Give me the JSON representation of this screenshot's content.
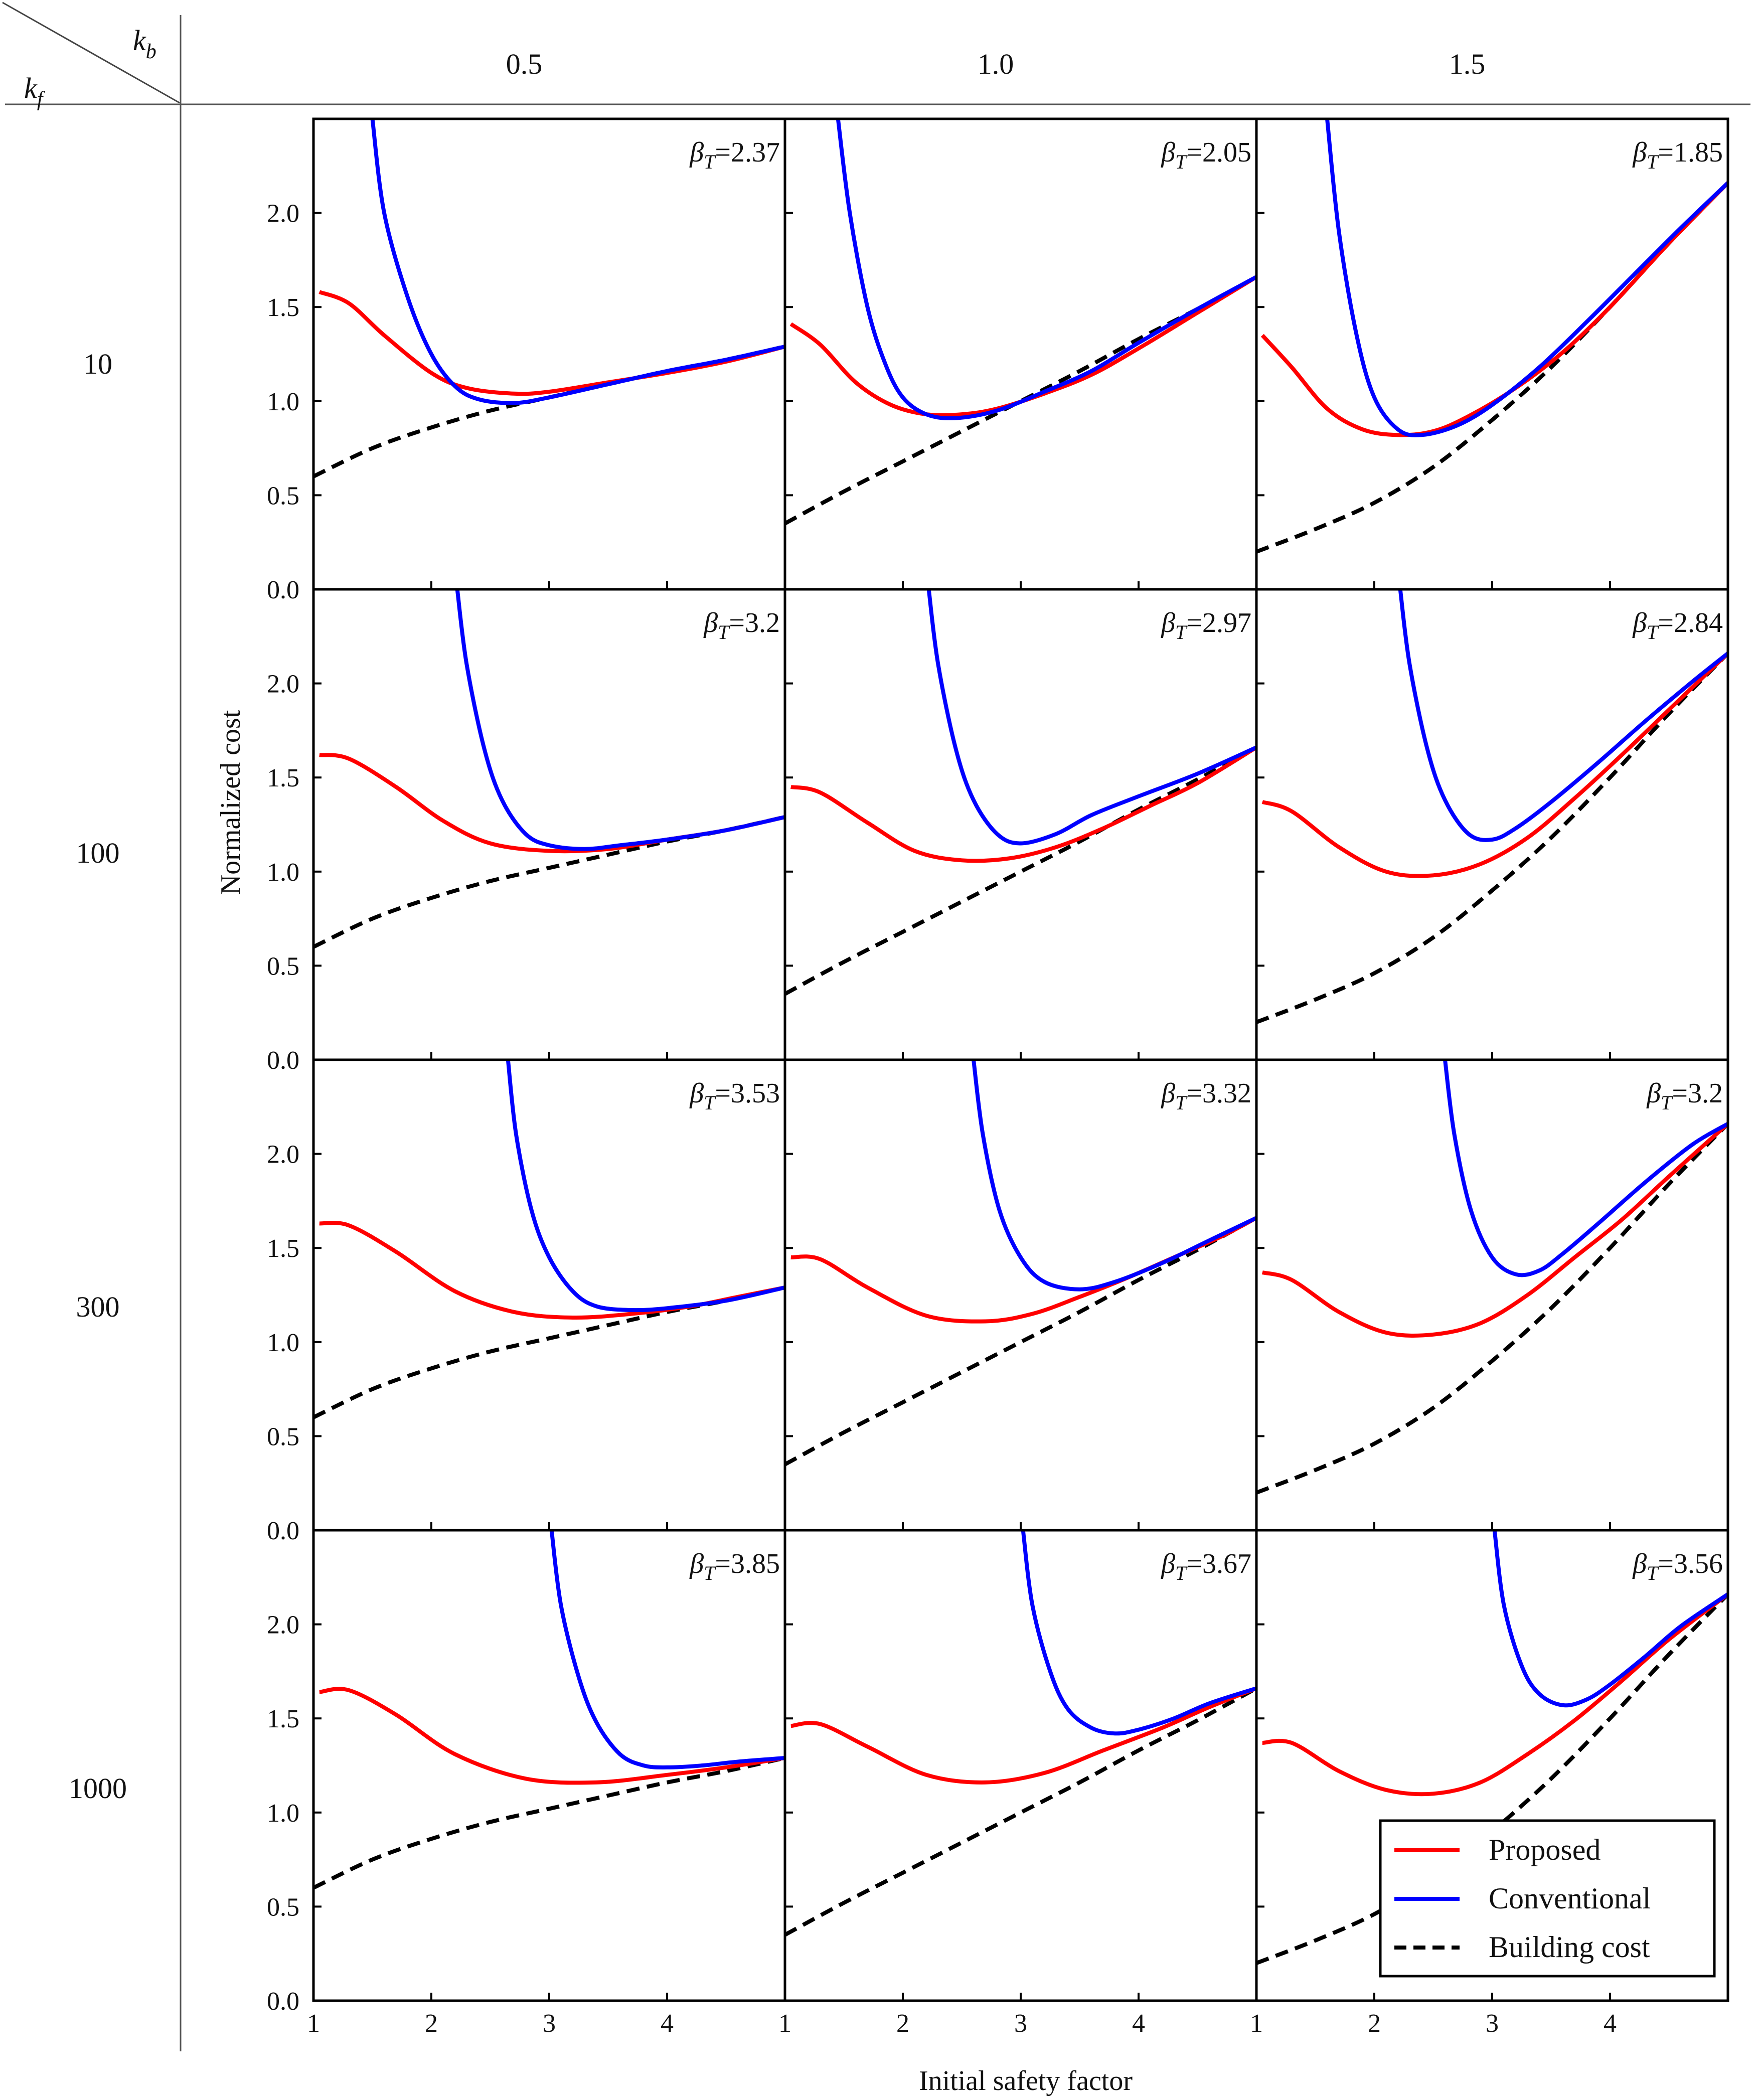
{
  "chart_data": {
    "type": "line",
    "corner": {
      "row_symbol": "k",
      "row_subscript": "f",
      "col_symbol": "k",
      "col_subscript": "b"
    },
    "columns": [
      "0.5",
      "1.0",
      "1.5"
    ],
    "rows": [
      "10",
      "100",
      "300",
      "1000"
    ],
    "ylabel": "Normalized cost",
    "xlabel": "Initial safety factor",
    "ylim": [
      0.0,
      2.5
    ],
    "yticks": [
      "0.0",
      "0.5",
      "1.0",
      "1.5",
      "2.0"
    ],
    "xlim": [
      1,
      5
    ],
    "xticks": [
      "1",
      "2",
      "3",
      "4"
    ],
    "legend": {
      "placement": "bottom-right",
      "entries": [
        {
          "label": "Proposed",
          "color": "#ff0000",
          "style": "solid"
        },
        {
          "label": "Conventional",
          "color": "#0000ff",
          "style": "solid"
        },
        {
          "label": "Building cost",
          "color": "#000000",
          "style": "dashed"
        }
      ]
    },
    "beta_prefix": "β",
    "beta_sub": "T",
    "building_cost": [
      {
        "x": [
          1,
          1.5,
          2,
          2.5,
          3,
          3.5,
          4,
          4.5,
          5
        ],
        "values": [
          0.6,
          0.75,
          0.86,
          0.95,
          1.02,
          1.09,
          1.16,
          1.22,
          1.29
        ]
      },
      {
        "x": [
          1,
          1.5,
          2,
          2.5,
          3,
          3.5,
          4,
          4.5,
          5
        ],
        "values": [
          0.35,
          0.52,
          0.68,
          0.84,
          1.0,
          1.16,
          1.33,
          1.49,
          1.66
        ]
      },
      {
        "x": [
          1,
          1.5,
          2,
          2.5,
          3,
          3.5,
          4,
          4.5,
          5
        ],
        "values": [
          0.2,
          0.32,
          0.46,
          0.65,
          0.9,
          1.18,
          1.5,
          1.84,
          2.16
        ]
      }
    ],
    "panels": [
      {
        "row": "10",
        "col": "0.5",
        "beta": "2.37",
        "series": [
          {
            "name": "Proposed",
            "x": [
              1.05,
              1.3,
              1.6,
              2.0,
              2.3,
              2.7,
              3.0,
              3.5,
              4.0,
              4.5,
              5.0
            ],
            "values": [
              1.58,
              1.52,
              1.35,
              1.15,
              1.07,
              1.04,
              1.05,
              1.1,
              1.15,
              1.21,
              1.29
            ]
          },
          {
            "name": "Conventional",
            "x": [
              1.5,
              1.6,
              1.8,
              2.0,
              2.2,
              2.4,
              2.7,
              3.0,
              3.5,
              4.0,
              4.5,
              5.0
            ],
            "values": [
              2.5,
              2.0,
              1.55,
              1.25,
              1.08,
              1.01,
              0.99,
              1.02,
              1.09,
              1.16,
              1.22,
              1.29
            ]
          }
        ]
      },
      {
        "row": "10",
        "col": "1.0",
        "beta": "2.05",
        "series": [
          {
            "name": "Proposed",
            "x": [
              1.05,
              1.3,
              1.6,
              1.9,
              2.2,
              2.5,
              2.8,
              3.2,
              3.6,
              4.0,
              4.5,
              5.0
            ],
            "values": [
              1.41,
              1.3,
              1.1,
              0.98,
              0.93,
              0.93,
              0.96,
              1.04,
              1.14,
              1.28,
              1.47,
              1.66
            ]
          },
          {
            "name": "Conventional",
            "x": [
              1.45,
              1.55,
              1.7,
              1.85,
              2.0,
              2.2,
              2.45,
              2.8,
              3.2,
              3.6,
              4.0,
              4.5,
              5.0
            ],
            "values": [
              2.5,
              2.0,
              1.5,
              1.2,
              1.02,
              0.93,
              0.91,
              0.95,
              1.05,
              1.16,
              1.31,
              1.49,
              1.66
            ]
          }
        ]
      },
      {
        "row": "10",
        "col": "1.5",
        "beta": "1.85",
        "series": [
          {
            "name": "Proposed",
            "x": [
              1.05,
              1.3,
              1.6,
              1.9,
              2.2,
              2.5,
              2.8,
              3.2,
              3.6,
              4.0,
              4.5,
              5.0
            ],
            "values": [
              1.35,
              1.18,
              0.96,
              0.85,
              0.82,
              0.84,
              0.92,
              1.07,
              1.26,
              1.5,
              1.84,
              2.16
            ]
          },
          {
            "name": "Conventional",
            "x": [
              1.6,
              1.7,
              1.85,
              2.0,
              2.2,
              2.4,
              2.7,
              3.0,
              3.4,
              3.8,
              4.2,
              4.6,
              5.0
            ],
            "values": [
              2.5,
              1.9,
              1.35,
              1.02,
              0.85,
              0.82,
              0.87,
              0.98,
              1.18,
              1.42,
              1.67,
              1.92,
              2.16
            ]
          }
        ]
      },
      {
        "row": "100",
        "col": "0.5",
        "beta": "3.2",
        "series": [
          {
            "name": "Proposed",
            "x": [
              1.05,
              1.3,
              1.7,
              2.1,
              2.5,
              3.0,
              3.5,
              4.0,
              4.5,
              5.0
            ],
            "values": [
              1.62,
              1.6,
              1.45,
              1.27,
              1.15,
              1.11,
              1.12,
              1.17,
              1.22,
              1.29
            ]
          },
          {
            "name": "Conventional",
            "x": [
              2.22,
              2.3,
              2.45,
              2.6,
              2.8,
              3.0,
              3.3,
              3.6,
              4.0,
              4.5,
              5.0
            ],
            "values": [
              2.5,
              2.1,
              1.65,
              1.38,
              1.2,
              1.14,
              1.12,
              1.14,
              1.17,
              1.22,
              1.29
            ]
          }
        ]
      },
      {
        "row": "100",
        "col": "1.0",
        "beta": "2.97",
        "series": [
          {
            "name": "Proposed",
            "x": [
              1.05,
              1.3,
              1.7,
              2.1,
              2.5,
              2.9,
              3.3,
              3.7,
              4.1,
              4.5,
              5.0
            ],
            "values": [
              1.45,
              1.42,
              1.26,
              1.11,
              1.06,
              1.07,
              1.13,
              1.23,
              1.35,
              1.47,
              1.66
            ]
          },
          {
            "name": "Conventional",
            "x": [
              2.22,
              2.3,
              2.45,
              2.6,
              2.8,
              3.0,
              3.3,
              3.6,
              4.0,
              4.5,
              5.0
            ],
            "values": [
              2.5,
              2.1,
              1.65,
              1.38,
              1.2,
              1.15,
              1.2,
              1.3,
              1.4,
              1.52,
              1.66
            ]
          }
        ]
      },
      {
        "row": "100",
        "col": "1.5",
        "beta": "2.84",
        "series": [
          {
            "name": "Proposed",
            "x": [
              1.05,
              1.3,
              1.7,
              2.1,
              2.5,
              2.9,
              3.3,
              3.7,
              4.1,
              4.5,
              5.0
            ],
            "values": [
              1.37,
              1.32,
              1.13,
              1.0,
              0.98,
              1.04,
              1.18,
              1.39,
              1.62,
              1.86,
              2.16
            ]
          },
          {
            "name": "Conventional",
            "x": [
              2.22,
              2.3,
              2.45,
              2.6,
              2.8,
              3.0,
              3.2,
              3.5,
              3.9,
              4.3,
              4.7,
              5.0
            ],
            "values": [
              2.5,
              2.1,
              1.65,
              1.38,
              1.2,
              1.17,
              1.23,
              1.37,
              1.58,
              1.8,
              2.01,
              2.16
            ]
          }
        ]
      },
      {
        "row": "300",
        "col": "0.5",
        "beta": "3.53",
        "series": [
          {
            "name": "Proposed",
            "x": [
              1.05,
              1.3,
              1.7,
              2.2,
              2.7,
              3.2,
              3.7,
              4.2,
              4.6,
              5.0
            ],
            "values": [
              1.63,
              1.62,
              1.48,
              1.27,
              1.16,
              1.13,
              1.15,
              1.19,
              1.24,
              1.29
            ]
          },
          {
            "name": "Conventional",
            "x": [
              2.65,
              2.72,
              2.85,
              3.0,
              3.2,
              3.4,
              3.7,
              4.0,
              4.5,
              5.0
            ],
            "values": [
              2.5,
              2.1,
              1.7,
              1.45,
              1.27,
              1.19,
              1.17,
              1.18,
              1.22,
              1.29
            ]
          }
        ]
      },
      {
        "row": "300",
        "col": "1.0",
        "beta": "3.32",
        "series": [
          {
            "name": "Proposed",
            "x": [
              1.05,
              1.3,
              1.7,
              2.2,
              2.7,
              3.1,
              3.5,
              3.9,
              4.3,
              4.7,
              5.0
            ],
            "values": [
              1.45,
              1.44,
              1.29,
              1.14,
              1.11,
              1.15,
              1.24,
              1.34,
              1.45,
              1.56,
              1.66
            ]
          },
          {
            "name": "Conventional",
            "x": [
              2.6,
              2.68,
              2.82,
              3.0,
              3.2,
              3.5,
              3.8,
              4.2,
              4.6,
              5.0
            ],
            "values": [
              2.5,
              2.1,
              1.7,
              1.45,
              1.32,
              1.28,
              1.32,
              1.42,
              1.54,
              1.66
            ]
          }
        ]
      },
      {
        "row": "300",
        "col": "1.5",
        "beta": "3.2",
        "series": [
          {
            "name": "Proposed",
            "x": [
              1.05,
              1.3,
              1.7,
              2.1,
              2.5,
              2.9,
              3.3,
              3.7,
              4.1,
              4.5,
              5.0
            ],
            "values": [
              1.37,
              1.33,
              1.16,
              1.05,
              1.04,
              1.1,
              1.25,
              1.45,
              1.65,
              1.88,
              2.16
            ]
          },
          {
            "name": "Conventional",
            "x": [
              2.6,
              2.68,
              2.82,
              3.0,
              3.2,
              3.4,
              3.6,
              3.9,
              4.3,
              4.7,
              5.0
            ],
            "values": [
              2.5,
              2.1,
              1.7,
              1.45,
              1.36,
              1.38,
              1.47,
              1.63,
              1.85,
              2.05,
              2.16
            ]
          }
        ]
      },
      {
        "row": "1000",
        "col": "0.5",
        "beta": "3.85",
        "series": [
          {
            "name": "Proposed",
            "x": [
              1.05,
              1.3,
              1.7,
              2.2,
              2.8,
              3.4,
              4.0,
              4.5,
              5.0
            ],
            "values": [
              1.64,
              1.65,
              1.52,
              1.31,
              1.18,
              1.16,
              1.2,
              1.24,
              1.29
            ]
          },
          {
            "name": "Conventional",
            "x": [
              3.02,
              3.1,
              3.25,
              3.4,
              3.6,
              3.8,
              4.0,
              4.3,
              4.6,
              5.0
            ],
            "values": [
              2.5,
              2.1,
              1.72,
              1.48,
              1.31,
              1.25,
              1.24,
              1.25,
              1.27,
              1.29
            ]
          }
        ]
      },
      {
        "row": "1000",
        "col": "1.0",
        "beta": "3.67",
        "series": [
          {
            "name": "Proposed",
            "x": [
              1.05,
              1.3,
              1.7,
              2.2,
              2.7,
              3.2,
              3.7,
              4.2,
              4.6,
              5.0
            ],
            "values": [
              1.46,
              1.47,
              1.35,
              1.2,
              1.16,
              1.21,
              1.33,
              1.45,
              1.56,
              1.66
            ]
          },
          {
            "name": "Conventional",
            "x": [
              3.02,
              3.1,
              3.25,
              3.4,
              3.6,
              3.8,
              4.0,
              4.3,
              4.6,
              5.0
            ],
            "values": [
              2.5,
              2.1,
              1.75,
              1.55,
              1.45,
              1.42,
              1.44,
              1.5,
              1.58,
              1.66
            ]
          }
        ]
      },
      {
        "row": "1000",
        "col": "1.5",
        "beta": "3.56",
        "series": [
          {
            "name": "Proposed",
            "x": [
              1.05,
              1.3,
              1.7,
              2.1,
              2.5,
              2.9,
              3.3,
              3.7,
              4.1,
              4.5,
              5.0
            ],
            "values": [
              1.37,
              1.37,
              1.22,
              1.12,
              1.1,
              1.16,
              1.31,
              1.49,
              1.7,
              1.92,
              2.16
            ]
          },
          {
            "name": "Conventional",
            "x": [
              3.02,
              3.1,
              3.25,
              3.4,
              3.6,
              3.8,
              4.0,
              4.3,
              4.6,
              5.0
            ],
            "values": [
              2.5,
              2.1,
              1.78,
              1.63,
              1.57,
              1.6,
              1.68,
              1.83,
              1.99,
              2.16
            ]
          }
        ]
      }
    ]
  }
}
